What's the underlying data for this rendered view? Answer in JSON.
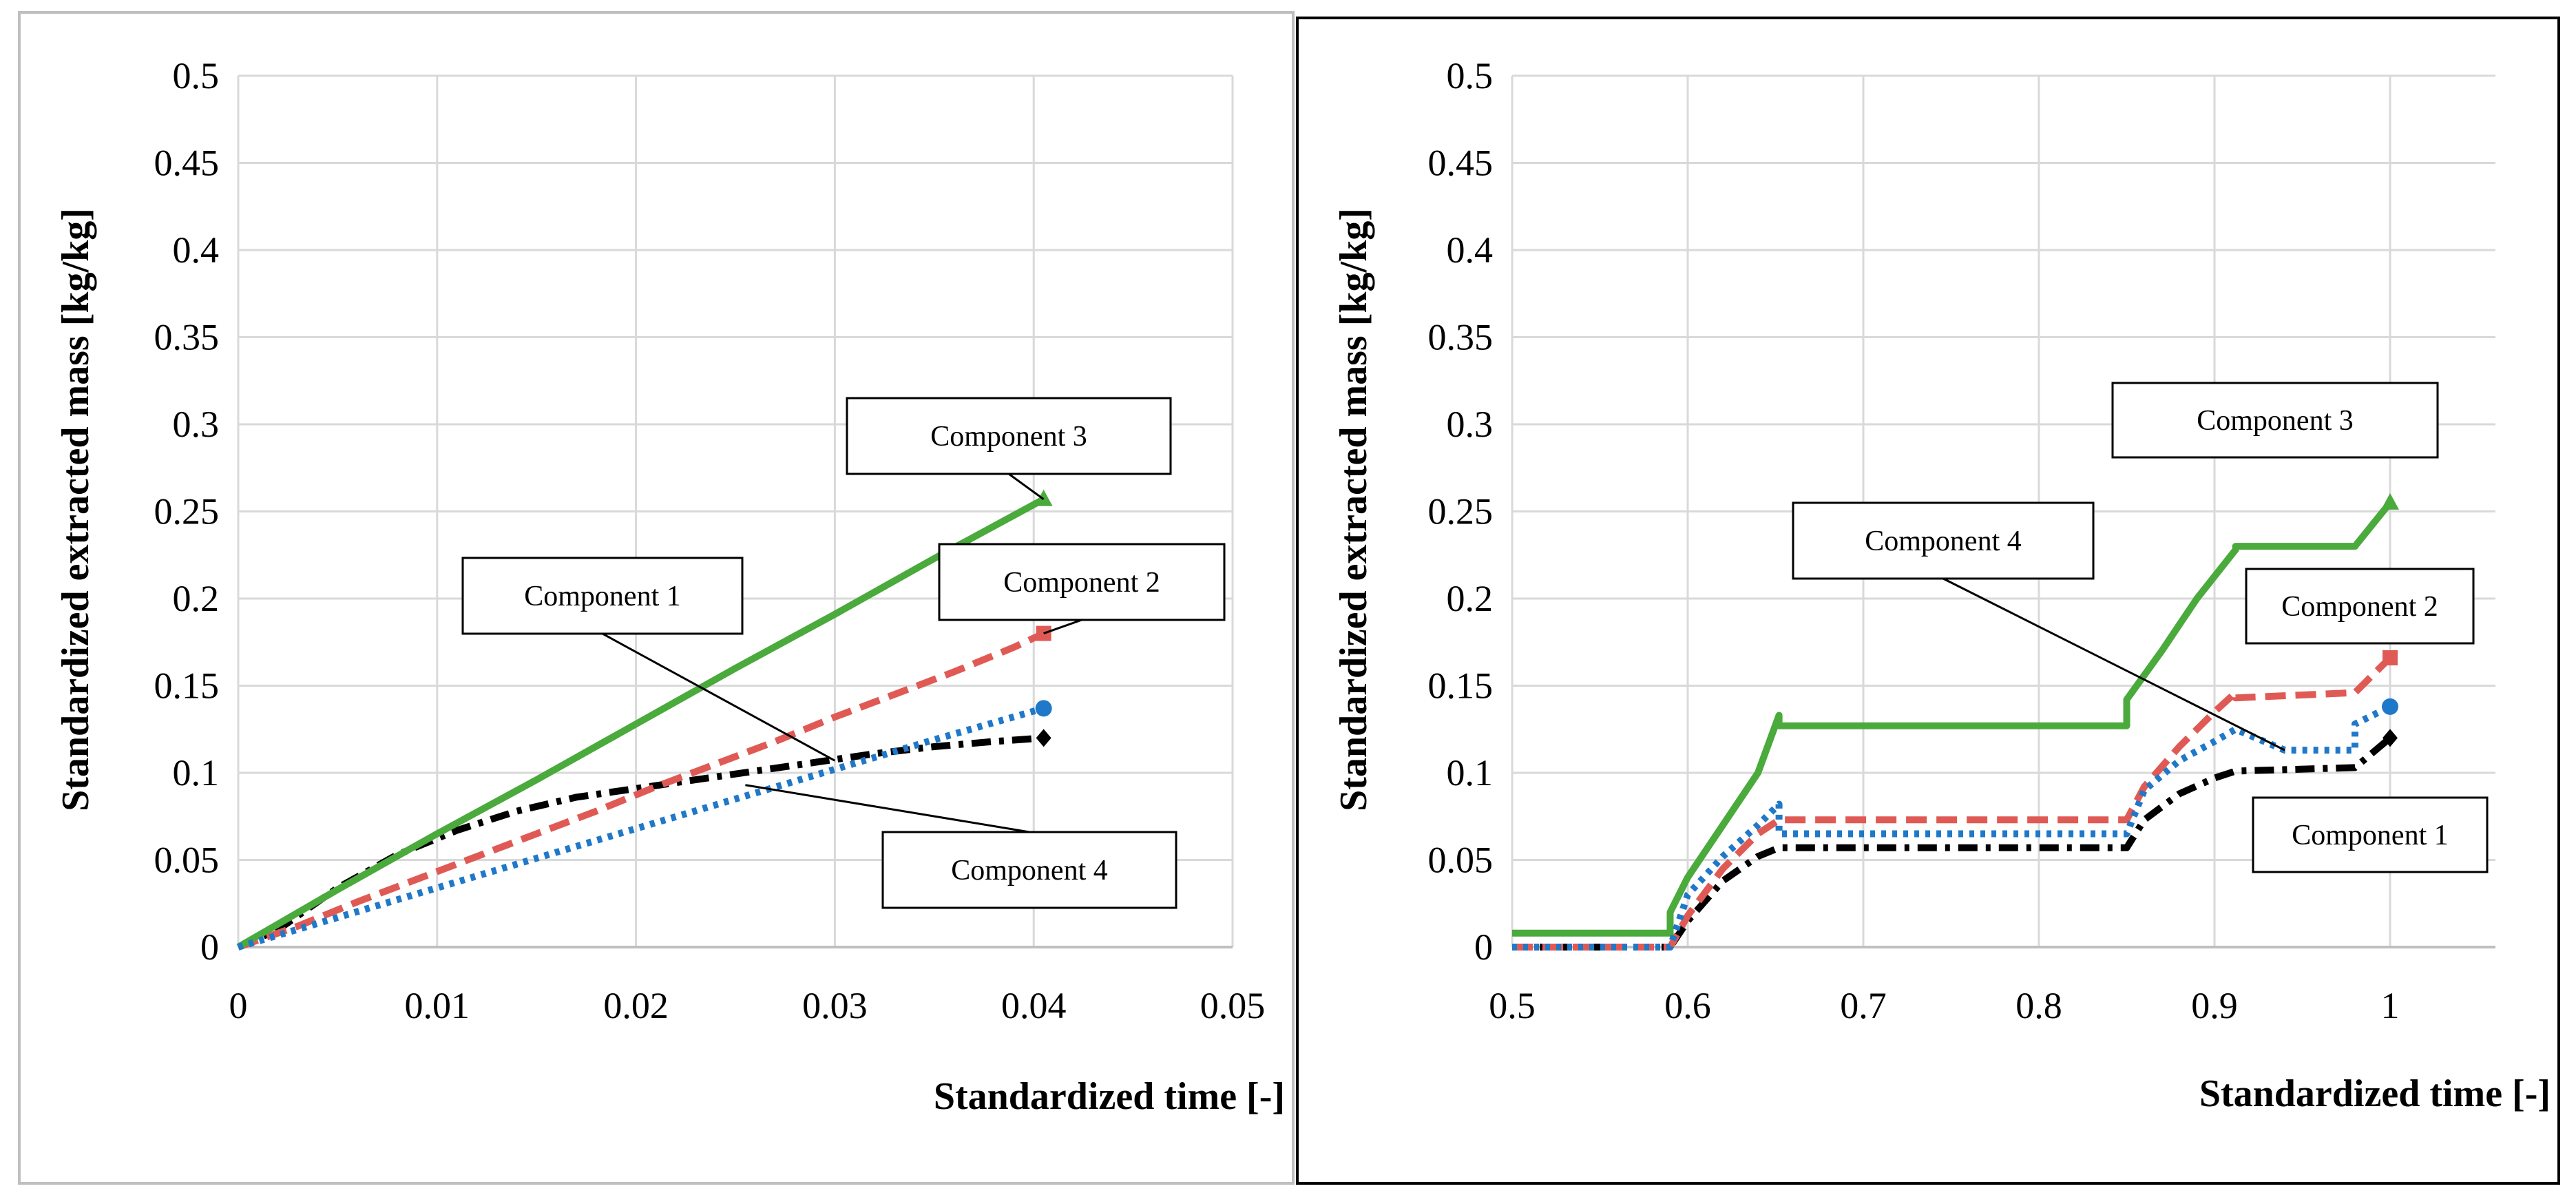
{
  "chart_data": [
    {
      "type": "line",
      "title": "",
      "xlabel": "Standardized time [-]",
      "ylabel": "Standardized extracted mass [kg/kg]",
      "xlim": [
        0,
        0.05
      ],
      "ylim": [
        0,
        0.5
      ],
      "xticks": [
        "0",
        "0.01",
        "0.02",
        "0.03",
        "0.04",
        "0.05"
      ],
      "yticks": [
        "0",
        "0.05",
        "0.1",
        "0.15",
        "0.2",
        "0.25",
        "0.3",
        "0.35",
        "0.4",
        "0.45",
        "0.5"
      ],
      "grid": true,
      "series": [
        {
          "name": "Component 1",
          "color": "#000000",
          "style": "dashdot",
          "marker": "diamond",
          "x": [
            0,
            0.002,
            0.005,
            0.008,
            0.011,
            0.014,
            0.017,
            0.02,
            0.023,
            0.026,
            0.029,
            0.032,
            0.035,
            0.038,
            0.0405
          ],
          "y": [
            0,
            0.01,
            0.034,
            0.053,
            0.067,
            0.078,
            0.086,
            0.091,
            0.096,
            0.101,
            0.106,
            0.111,
            0.115,
            0.118,
            0.12
          ]
        },
        {
          "name": "Component 2",
          "color": "#e05a55",
          "style": "dashed",
          "marker": "square",
          "x": [
            0,
            0.003,
            0.006,
            0.009,
            0.012,
            0.015,
            0.018,
            0.021,
            0.024,
            0.027,
            0.03,
            0.033,
            0.036,
            0.039,
            0.0405
          ],
          "y": [
            0,
            0.012,
            0.026,
            0.039,
            0.052,
            0.065,
            0.078,
            0.092,
            0.105,
            0.118,
            0.132,
            0.145,
            0.158,
            0.172,
            0.18
          ]
        },
        {
          "name": "Component 3",
          "color": "#4aaa3c",
          "style": "solid",
          "marker": "triangle",
          "x": [
            0,
            0.005,
            0.01,
            0.015,
            0.02,
            0.025,
            0.03,
            0.035,
            0.0405
          ],
          "y": [
            0,
            0.033,
            0.065,
            0.096,
            0.128,
            0.16,
            0.191,
            0.223,
            0.257
          ]
        },
        {
          "name": "Component 4",
          "color": "#1f78c8",
          "style": "dotted",
          "marker": "circle",
          "x": [
            0,
            0.005,
            0.01,
            0.015,
            0.02,
            0.025,
            0.03,
            0.035,
            0.0405
          ],
          "y": [
            0,
            0.017,
            0.034,
            0.051,
            0.068,
            0.085,
            0.102,
            0.119,
            0.137
          ]
        }
      ],
      "annotations": [
        {
          "text": "Component 3",
          "target": [
            0.0405,
            0.257
          ]
        },
        {
          "text": "Component 2",
          "target": [
            0.0405,
            0.18
          ]
        },
        {
          "text": "Component 1",
          "target": [
            0.03,
            0.107
          ]
        },
        {
          "text": "Component 4",
          "target": [
            0.0255,
            0.093
          ]
        }
      ]
    },
    {
      "type": "line",
      "title": "",
      "xlabel": "Standardized time [-]",
      "ylabel": "Standardized extracted mass [kg/kg]",
      "xlim": [
        0.5,
        1.06
      ],
      "ylim": [
        0,
        0.5
      ],
      "xticks": [
        "0.5",
        "0.6",
        "0.7",
        "0.8",
        "0.9",
        "1"
      ],
      "yticks": [
        "0",
        "0.05",
        "0.1",
        "0.15",
        "0.2",
        "0.25",
        "0.3",
        "0.35",
        "0.4",
        "0.45",
        "0.5"
      ],
      "grid": true,
      "series": [
        {
          "name": "Component 1",
          "color": "#000000",
          "style": "dashdot",
          "marker": "diamond",
          "x": [
            0.5,
            0.59,
            0.6,
            0.62,
            0.64,
            0.652,
            0.652,
            0.85,
            0.86,
            0.88,
            0.9,
            0.912,
            0.912,
            0.98,
            1.0
          ],
          "y": [
            0,
            0,
            0.015,
            0.038,
            0.052,
            0.057,
            0.057,
            0.057,
            0.073,
            0.088,
            0.097,
            0.101,
            0.101,
            0.103,
            0.12
          ]
        },
        {
          "name": "Component 2",
          "color": "#e05a55",
          "style": "dashed",
          "marker": "square",
          "x": [
            0.5,
            0.59,
            0.6,
            0.62,
            0.64,
            0.652,
            0.652,
            0.85,
            0.86,
            0.88,
            0.9,
            0.912,
            0.912,
            0.98,
            1.0
          ],
          "y": [
            0,
            0,
            0.018,
            0.045,
            0.065,
            0.073,
            0.073,
            0.073,
            0.092,
            0.115,
            0.135,
            0.146,
            0.143,
            0.146,
            0.166
          ]
        },
        {
          "name": "Component 3",
          "color": "#4aaa3c",
          "style": "solid",
          "marker": "triangle",
          "x": [
            0.5,
            0.59,
            0.59,
            0.6,
            0.62,
            0.64,
            0.652,
            0.652,
            0.85,
            0.85,
            0.87,
            0.89,
            0.912,
            0.912,
            0.98,
            1.0
          ],
          "y": [
            0.008,
            0.008,
            0.02,
            0.04,
            0.07,
            0.1,
            0.133,
            0.127,
            0.127,
            0.142,
            0.17,
            0.2,
            0.228,
            0.23,
            0.23,
            0.255
          ]
        },
        {
          "name": "Component 4",
          "color": "#1f78c8",
          "style": "dotted",
          "marker": "circle",
          "x": [
            0.5,
            0.59,
            0.6,
            0.62,
            0.64,
            0.652,
            0.652,
            0.85,
            0.86,
            0.88,
            0.9,
            0.912,
            0.94,
            0.98,
            0.98,
            1.0
          ],
          "y": [
            0,
            0,
            0.03,
            0.052,
            0.07,
            0.082,
            0.065,
            0.065,
            0.09,
            0.107,
            0.118,
            0.125,
            0.113,
            0.113,
            0.128,
            0.138
          ]
        }
      ],
      "annotations": [
        {
          "text": "Component 3",
          "target": null
        },
        {
          "text": "Component 4",
          "target": [
            0.94,
            0.113
          ]
        },
        {
          "text": "Component 2",
          "target": null
        },
        {
          "text": "Component 1",
          "target": null
        }
      ]
    }
  ]
}
